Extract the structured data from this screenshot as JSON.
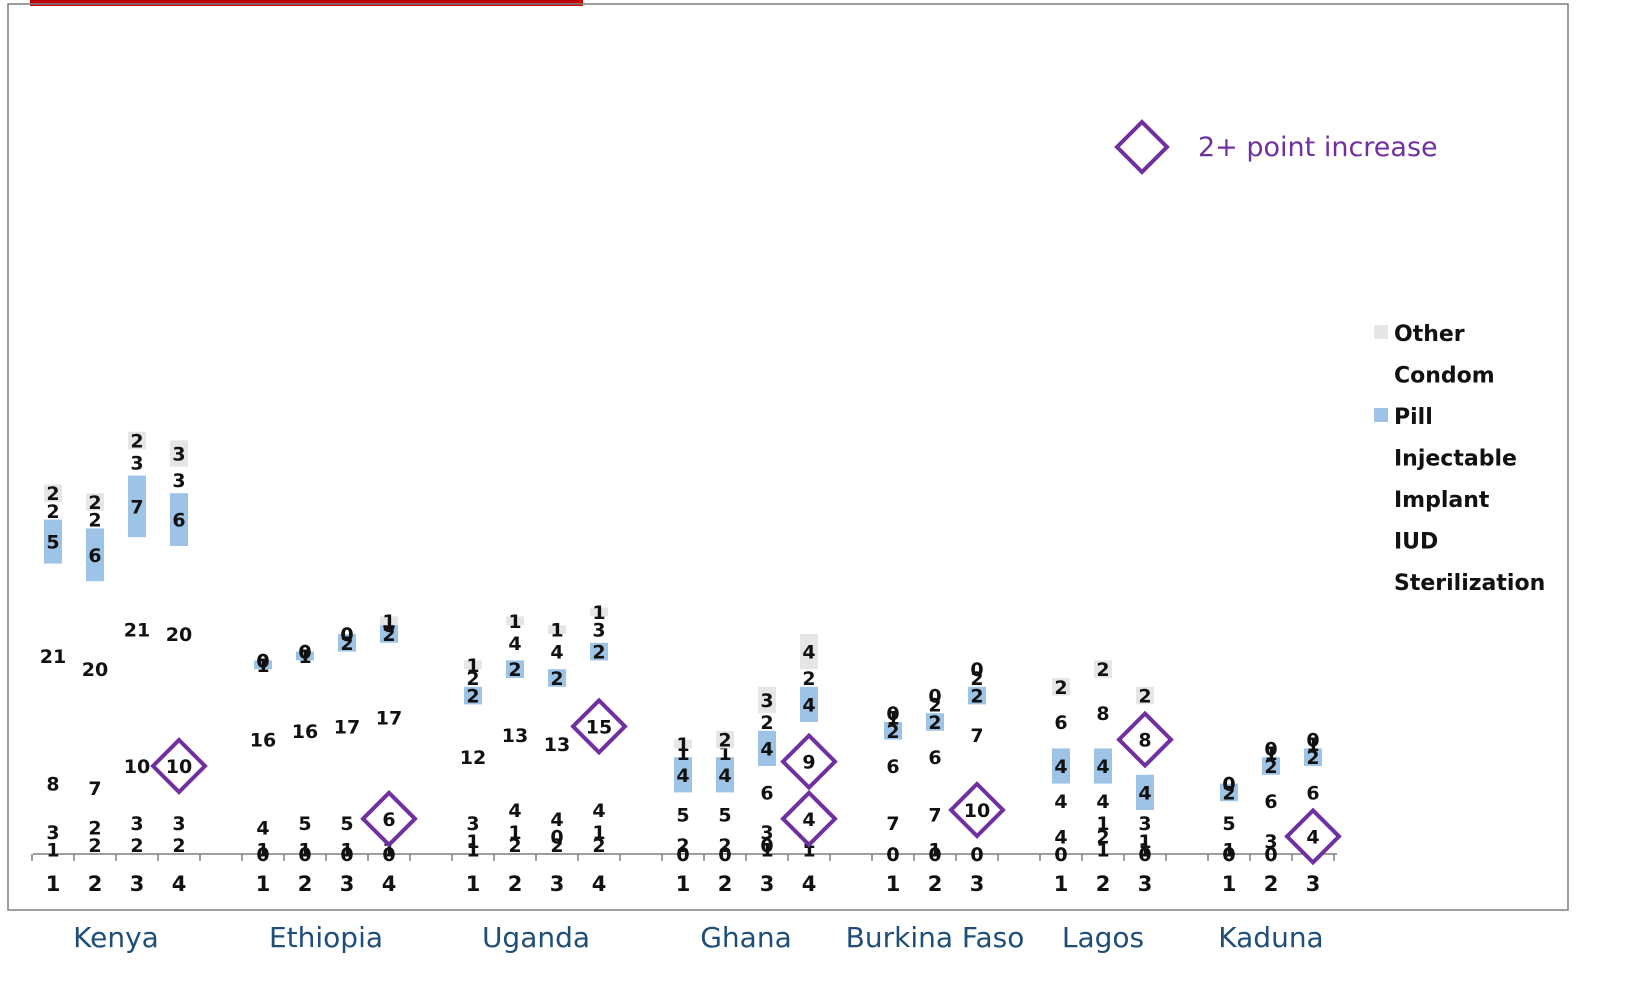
{
  "chart_data": {
    "type": "bar",
    "stacking": "stacked",
    "series_order": [
      "Sterilization",
      "IUD",
      "Implant",
      "Injectable",
      "Pill",
      "Condom",
      "Other"
    ],
    "legend": {
      "placement": "right",
      "entries": [
        "Other",
        "Condom",
        "Pill",
        "Injectable",
        "Implant",
        "IUD",
        "Sterilization"
      ]
    },
    "colors": {
      "Pill": "#9dc3e6",
      "Other": "#e7e6e6",
      "diamond": "#7030a0",
      "axis": "#7f7f7f",
      "frame": "#7f7f7f",
      "title_bar": "#c00000",
      "country_label": "#1f4e79"
    },
    "key": {
      "label": "2+ point increase"
    },
    "groups": [
      {
        "name": "Kenya",
        "rounds": [
          {
            "round": "1",
            "values": {
              "Sterilization": 1,
              "IUD": 3,
              "Implant": 8,
              "Injectable": 21,
              "Pill": 5,
              "Condom": 2,
              "Other": 2
            }
          },
          {
            "round": "2",
            "values": {
              "Sterilization": 2,
              "IUD": 2,
              "Implant": 7,
              "Injectable": 20,
              "Pill": 6,
              "Condom": 2,
              "Other": 2
            }
          },
          {
            "round": "3",
            "values": {
              "Sterilization": 2,
              "IUD": 3,
              "Implant": 10,
              "Injectable": 21,
              "Pill": 7,
              "Condom": 3,
              "Other": 2
            }
          },
          {
            "round": "4",
            "values": {
              "Sterilization": 2,
              "IUD": 3,
              "Implant": 10,
              "Injectable": 20,
              "Pill": 6,
              "Condom": 3,
              "Other": 3
            }
          }
        ],
        "increases": [
          {
            "round": "4",
            "method": "Implant",
            "value": 10
          }
        ]
      },
      {
        "name": "Ethiopia",
        "rounds": [
          {
            "round": "1",
            "values": {
              "Sterilization": 0,
              "IUD": 1,
              "Implant": 4,
              "Injectable": 16,
              "Pill": 1,
              "Condom": 0,
              "Other": 0
            }
          },
          {
            "round": "2",
            "values": {
              "Sterilization": 0,
              "IUD": 1,
              "Implant": 5,
              "Injectable": 16,
              "Pill": 1,
              "Condom": 0,
              "Other": 0
            }
          },
          {
            "round": "3",
            "values": {
              "Sterilization": 0,
              "IUD": 1,
              "Implant": 5,
              "Injectable": 17,
              "Pill": 2,
              "Condom": 0,
              "Other": 0
            }
          },
          {
            "round": "4",
            "values": {
              "Sterilization": 0,
              "IUD": 1,
              "Implant": 6,
              "Injectable": 17,
              "Pill": 2,
              "Condom": 0,
              "Other": 1
            }
          }
        ],
        "increases": [
          {
            "round": "4",
            "method": "Implant",
            "value": 6
          }
        ]
      },
      {
        "name": "Uganda",
        "rounds": [
          {
            "round": "1",
            "values": {
              "Sterilization": 1,
              "IUD": 1,
              "Implant": 3,
              "Injectable": 12,
              "Pill": 2,
              "Condom": 2,
              "Other": 1
            }
          },
          {
            "round": "2",
            "values": {
              "Sterilization": 2,
              "IUD": 1,
              "Implant": 4,
              "Injectable": 13,
              "Pill": 2,
              "Condom": 4,
              "Other": 1
            }
          },
          {
            "round": "3",
            "values": {
              "Sterilization": 2,
              "IUD": 0,
              "Implant": 4,
              "Injectable": 13,
              "Pill": 2,
              "Condom": 4,
              "Other": 1
            }
          },
          {
            "round": "4",
            "values": {
              "Sterilization": 2,
              "IUD": 1,
              "Implant": 4,
              "Injectable": 15,
              "Pill": 2,
              "Condom": 3,
              "Other": 1
            }
          }
        ],
        "increases": [
          {
            "round": "4",
            "method": "Injectable",
            "value": 15
          }
        ]
      },
      {
        "name": "Ghana",
        "rounds": [
          {
            "round": "1",
            "values": {
              "Sterilization": 0,
              "IUD": 0,
              "Implant": 2,
              "Injectable": 5,
              "Pill": 4,
              "Condom": 1,
              "Other": 1
            }
          },
          {
            "round": "2",
            "values": {
              "Sterilization": 0,
              "IUD": 0,
              "Implant": 2,
              "Injectable": 5,
              "Pill": 4,
              "Condom": 1,
              "Other": 2
            }
          },
          {
            "round": "3",
            "values": {
              "Sterilization": 1,
              "IUD": 0,
              "Implant": 3,
              "Injectable": 6,
              "Pill": 4,
              "Condom": 2,
              "Other": 3
            }
          },
          {
            "round": "4",
            "values": {
              "Sterilization": 1,
              "IUD": 1,
              "Implant": 4,
              "Injectable": 9,
              "Pill": 4,
              "Condom": 2,
              "Other": 4
            }
          }
        ],
        "increases": [
          {
            "round": "4",
            "method": "Implant",
            "value": 4
          },
          {
            "round": "4",
            "method": "Injectable",
            "value": 9
          }
        ]
      },
      {
        "name": "Burkina Faso",
        "rounds": [
          {
            "round": "1",
            "values": {
              "Sterilization": 0,
              "IUD": 0,
              "Implant": 7,
              "Injectable": 6,
              "Pill": 2,
              "Condom": 1,
              "Other": 0
            }
          },
          {
            "round": "2",
            "values": {
              "Sterilization": 0,
              "IUD": 1,
              "Implant": 7,
              "Injectable": 6,
              "Pill": 2,
              "Condom": 2,
              "Other": 0
            }
          },
          {
            "round": "3",
            "values": {
              "Sterilization": 0,
              "IUD": 0,
              "Implant": 10,
              "Injectable": 7,
              "Pill": 2,
              "Condom": 2,
              "Other": 0
            }
          }
        ],
        "increases": [
          {
            "round": "3",
            "method": "Implant",
            "value": 10
          }
        ]
      },
      {
        "name": "Lagos",
        "rounds": [
          {
            "round": "1",
            "values": {
              "Sterilization": 0,
              "IUD": 0,
              "Implant": 4,
              "Injectable": 4,
              "Pill": 4,
              "Condom": 6,
              "Other": 2
            }
          },
          {
            "round": "2",
            "values": {
              "Sterilization": 1,
              "IUD": 2,
              "Implant": 1,
              "Injectable": 4,
              "Pill": 4,
              "Condom": 8,
              "Other": 2
            }
          },
          {
            "round": "3",
            "values": {
              "Sterilization": 0,
              "IUD": 1,
              "Implant": 1,
              "Injectable": 3,
              "Pill": 4,
              "Condom": 8,
              "Other": 2
            }
          }
        ],
        "increases": [
          {
            "round": "3",
            "method": "Condom",
            "value": 8
          }
        ]
      },
      {
        "name": "Kaduna",
        "rounds": [
          {
            "round": "1",
            "values": {
              "Sterilization": 0,
              "IUD": 0,
              "Implant": 1,
              "Injectable": 5,
              "Pill": 2,
              "Condom": 0,
              "Other": 0
            }
          },
          {
            "round": "2",
            "values": {
              "Sterilization": 0,
              "IUD": 0,
              "Implant": 3,
              "Injectable": 6,
              "Pill": 2,
              "Condom": 1,
              "Other": 0
            }
          },
          {
            "round": "3",
            "values": {
              "Sterilization": 0,
              "IUD": 0,
              "Implant": 4,
              "Injectable": 6,
              "Pill": 2,
              "Condom": 1,
              "Other": 0
            }
          }
        ],
        "increases": [
          {
            "round": "3",
            "method": "Implant",
            "value": 4
          }
        ]
      }
    ]
  }
}
